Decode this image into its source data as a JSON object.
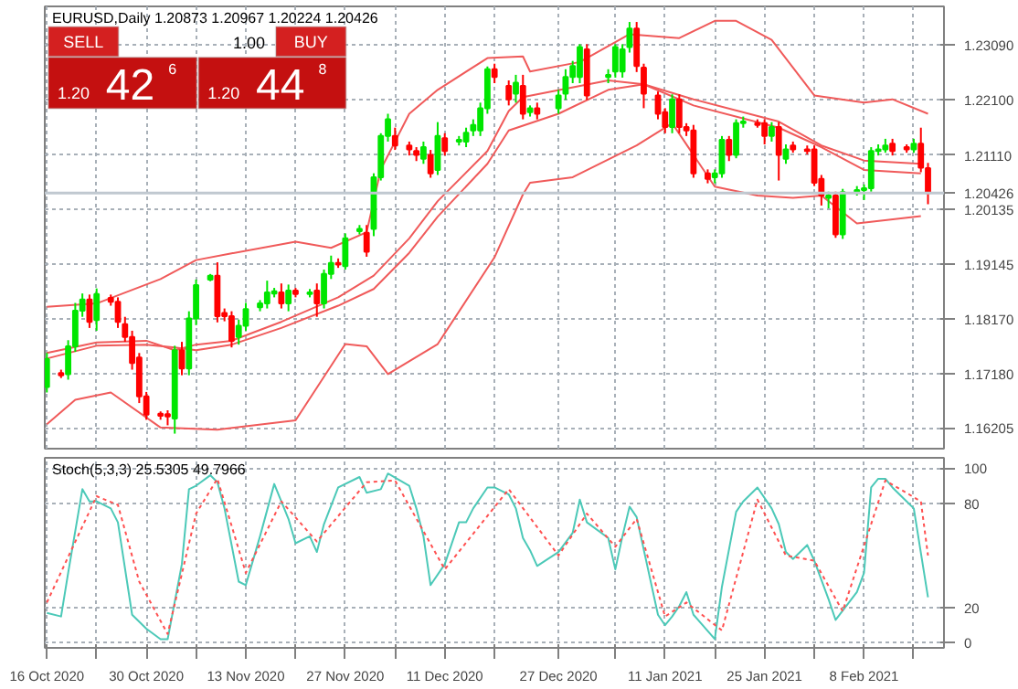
{
  "chart_data": [
    {
      "type": "candlestick",
      "title": "EURUSD,Daily 1.20873 1.20967 1.20224 1.20426",
      "annotations": [
        "SELL",
        "1.00",
        "BUY",
        "1.20",
        "42",
        "6",
        "1.20",
        "44",
        "8"
      ],
      "x": [
        "2020-10-16",
        "2020-10-18",
        "2020-10-19",
        "2020-10-20",
        "2020-10-21",
        "2020-10-22",
        "2020-10-23",
        "2020-10-25",
        "2020-10-26",
        "2020-10-27",
        "2020-10-28",
        "2020-10-29",
        "2020-10-30",
        "2020-11-01",
        "2020-11-02",
        "2020-11-03",
        "2020-11-04",
        "2020-11-05",
        "2020-11-06",
        "2020-11-08",
        "2020-11-09",
        "2020-11-10",
        "2020-11-11",
        "2020-11-12",
        "2020-11-13",
        "2020-11-15",
        "2020-11-16",
        "2020-11-17",
        "2020-11-18",
        "2020-11-19",
        "2020-11-20",
        "2020-11-22",
        "2020-11-23",
        "2020-11-24",
        "2020-11-25",
        "2020-11-26",
        "2020-11-27",
        "2020-11-29",
        "2020-11-30",
        "2020-12-01",
        "2020-12-02",
        "2020-12-03",
        "2020-12-04",
        "2020-12-06",
        "2020-12-07",
        "2020-12-08",
        "2020-12-09",
        "2020-12-10",
        "2020-12-11",
        "2020-12-13",
        "2020-12-14",
        "2020-12-15",
        "2020-12-16",
        "2020-12-17",
        "2020-12-18",
        "2020-12-20",
        "2020-12-21",
        "2020-12-22",
        "2020-12-23",
        "2020-12-24",
        "2020-12-27",
        "2020-12-28",
        "2020-12-29",
        "2020-12-30",
        "2020-12-31",
        "2021-01-03",
        "2021-01-04",
        "2021-01-05",
        "2021-01-06",
        "2021-01-07",
        "2021-01-08",
        "2021-01-10",
        "2021-01-11",
        "2021-01-12",
        "2021-01-13",
        "2021-01-14",
        "2021-01-15",
        "2021-01-17",
        "2021-01-18",
        "2021-01-19",
        "2021-01-20",
        "2021-01-21",
        "2021-01-22",
        "2021-01-24",
        "2021-01-25",
        "2021-01-26",
        "2021-01-27",
        "2021-01-28",
        "2021-01-29",
        "2021-01-31",
        "2021-02-01",
        "2021-02-02",
        "2021-02-03",
        "2021-02-04",
        "2021-02-05",
        "2021-02-07",
        "2021-02-08",
        "2021-02-09",
        "2021-02-10",
        "2021-02-11",
        "2021-02-12",
        "2021-02-14",
        "2021-02-15",
        "2021-02-16",
        "2021-02-17"
      ],
      "ohlc": [
        [
          1.1694,
          1.1755,
          1.1684,
          1.1744
        ],
        [
          1.1719,
          1.1725,
          1.171,
          1.1715
        ],
        [
          1.1717,
          1.1778,
          1.1707,
          1.1767
        ],
        [
          1.1767,
          1.1845,
          1.1757,
          1.1831
        ],
        [
          1.1831,
          1.1862,
          1.182,
          1.1851
        ],
        [
          1.1851,
          1.186,
          1.18,
          1.1811
        ],
        [
          1.1814,
          1.1871,
          1.1795,
          1.1861
        ],
        [
          1.1854,
          1.186,
          1.184,
          1.1847
        ],
        [
          1.1847,
          1.1855,
          1.18,
          1.1811
        ],
        [
          1.1807,
          1.182,
          1.1775,
          1.1784
        ],
        [
          1.1784,
          1.1795,
          1.1725,
          1.1737
        ],
        [
          1.1747,
          1.1755,
          1.1665,
          1.1677
        ],
        [
          1.1677,
          1.1685,
          1.1635,
          1.1644
        ],
        [
          1.1646,
          1.165,
          1.1635,
          1.1642
        ],
        [
          1.1645,
          1.1652,
          1.1625,
          1.1641
        ],
        [
          1.1637,
          1.1768,
          1.161,
          1.176
        ],
        [
          1.176,
          1.1775,
          1.1715,
          1.1727
        ],
        [
          1.1727,
          1.183,
          1.1715,
          1.1817
        ],
        [
          1.1817,
          1.1887,
          1.1805,
          1.1877
        ],
        [
          1.1887,
          1.1897,
          1.1884,
          1.1894
        ],
        [
          1.1894,
          1.1918,
          1.181,
          1.1821
        ],
        [
          1.1827,
          1.1835,
          1.1812,
          1.1821
        ],
        [
          1.1821,
          1.183,
          1.1765,
          1.1777
        ],
        [
          1.1784,
          1.1815,
          1.177,
          1.1804
        ],
        [
          1.1804,
          1.1845,
          1.1795,
          1.1834
        ],
        [
          1.1837,
          1.185,
          1.183,
          1.1844
        ],
        [
          1.1844,
          1.1885,
          1.1835,
          1.1864
        ],
        [
          1.1862,
          1.1872,
          1.1855,
          1.1866
        ],
        [
          1.1864,
          1.188,
          1.1835,
          1.1844
        ],
        [
          1.1844,
          1.1878,
          1.183,
          1.1867
        ],
        [
          1.1867,
          1.1872,
          1.1855,
          1.1861
        ],
        [
          1.1861,
          1.187,
          1.1855,
          1.1864
        ],
        [
          1.1867,
          1.188,
          1.182,
          1.1844
        ],
        [
          1.1844,
          1.1905,
          1.1835,
          1.1897
        ],
        [
          1.1897,
          1.193,
          1.1888,
          1.1917
        ],
        [
          1.1917,
          1.1925,
          1.1908,
          1.1914
        ],
        [
          1.1911,
          1.197,
          1.1905,
          1.1961
        ],
        [
          1.1974,
          1.1985,
          1.1968,
          1.1978
        ],
        [
          1.1971,
          1.1985,
          1.1928,
          1.1937
        ],
        [
          1.1978,
          1.2078,
          1.1965,
          1.2071
        ],
        [
          1.2071,
          1.215,
          1.2065,
          1.2145
        ],
        [
          1.2145,
          1.2185,
          1.2135,
          1.2175
        ],
        [
          1.2145,
          1.216,
          1.212,
          1.2128
        ],
        [
          1.2128,
          1.2135,
          1.211,
          1.2121
        ],
        [
          1.2118,
          1.2125,
          1.21,
          1.2111
        ],
        [
          1.2104,
          1.2135,
          1.2095,
          1.2125
        ],
        [
          1.2111,
          1.212,
          1.207,
          1.2078
        ],
        [
          1.2084,
          1.217,
          1.2075,
          1.2145
        ],
        [
          1.2141,
          1.215,
          1.211,
          1.2118
        ],
        [
          1.2135,
          1.2145,
          1.2128,
          1.2138
        ],
        [
          1.2135,
          1.216,
          1.2125,
          1.2151
        ],
        [
          1.2155,
          1.2175,
          1.2145,
          1.2165
        ],
        [
          1.2155,
          1.2205,
          1.2145,
          1.2195
        ],
        [
          1.2195,
          1.227,
          1.2185,
          1.2265
        ],
        [
          1.2265,
          1.2275,
          1.224,
          1.2251
        ],
        [
          1.2235,
          1.2245,
          1.22,
          1.2211
        ],
        [
          1.2221,
          1.2255,
          1.2205,
          1.2241
        ],
        [
          1.2235,
          1.2255,
          1.2175,
          1.2185
        ],
        [
          1.2188,
          1.22,
          1.218,
          1.2195
        ],
        [
          1.2195,
          1.2205,
          1.2175,
          1.2185
        ],
        [
          1.2195,
          1.2228,
          1.2185,
          1.2218
        ],
        [
          1.2221,
          1.2265,
          1.221,
          1.2251
        ],
        [
          1.2251,
          1.228,
          1.224,
          1.2271
        ],
        [
          1.2251,
          1.231,
          1.224,
          1.2305
        ],
        [
          1.2301,
          1.231,
          1.221,
          1.2218
        ],
        [
          1.2251,
          1.2265,
          1.224,
          1.2255
        ],
        [
          1.2261,
          1.231,
          1.225,
          1.2305
        ],
        [
          1.2261,
          1.231,
          1.225,
          1.2301
        ],
        [
          1.2305,
          1.235,
          1.2295,
          1.2338
        ],
        [
          1.2338,
          1.235,
          1.226,
          1.2271
        ],
        [
          1.2268,
          1.2275,
          1.2195,
          1.2221
        ],
        [
          1.2218,
          1.2225,
          1.2175,
          1.2185
        ],
        [
          1.2188,
          1.2195,
          1.215,
          1.2161
        ],
        [
          1.2161,
          1.222,
          1.215,
          1.2211
        ],
        [
          1.2211,
          1.222,
          1.215,
          1.2161
        ],
        [
          1.2161,
          1.2168,
          1.2145,
          1.2155
        ],
        [
          1.2155,
          1.2165,
          1.207,
          1.2078
        ],
        [
          1.2078,
          1.2085,
          1.206,
          1.2068
        ],
        [
          1.2071,
          1.2085,
          1.206,
          1.2078
        ],
        [
          1.2078,
          1.2145,
          1.207,
          1.2138
        ],
        [
          1.2138,
          1.2145,
          1.21,
          1.2111
        ],
        [
          1.2111,
          1.2175,
          1.2105,
          1.2168
        ],
        [
          1.2168,
          1.218,
          1.216,
          1.2171
        ],
        [
          1.2168,
          1.2175,
          1.216,
          1.2165
        ],
        [
          1.2168,
          1.2175,
          1.213,
          1.2145
        ],
        [
          1.2145,
          1.217,
          1.2135,
          1.2161
        ],
        [
          1.2161,
          1.217,
          1.2065,
          1.2111
        ],
        [
          1.2104,
          1.213,
          1.2095,
          1.2121
        ],
        [
          1.2128,
          1.2135,
          1.2115,
          1.2121
        ],
        [
          1.2121,
          1.2128,
          1.2112,
          1.2118
        ],
        [
          1.2121,
          1.2128,
          1.2055,
          1.2061
        ],
        [
          1.2068,
          1.2075,
          1.202,
          1.2038
        ],
        [
          1.2034,
          1.2045,
          1.2015,
          1.2038
        ],
        [
          1.2038,
          1.2045,
          1.1962,
          1.1968
        ],
        [
          1.1968,
          1.205,
          1.196,
          1.2044
        ],
        [
          1.2044,
          1.2055,
          1.2038,
          1.2048
        ],
        [
          1.2048,
          1.2058,
          1.203,
          1.2051
        ],
        [
          1.2051,
          1.2125,
          1.2045,
          1.2118
        ],
        [
          1.2118,
          1.213,
          1.211,
          1.2121
        ],
        [
          1.2121,
          1.214,
          1.2115,
          1.2128
        ],
        [
          1.2131,
          1.214,
          1.211,
          1.2118
        ],
        [
          1.2125,
          1.213,
          1.2115,
          1.2121
        ],
        [
          1.2121,
          1.214,
          1.2115,
          1.2131
        ],
        [
          1.2131,
          1.216,
          1.208,
          1.2088
        ],
        [
          1.20873,
          1.20967,
          1.20224,
          1.20426
        ]
      ],
      "colors": [
        "#00e600",
        "#ff0000",
        "#00e600",
        "#00e600",
        "#00e600",
        "#ff0000",
        "#00e600",
        "#ff0000",
        "#ff0000",
        "#ff0000",
        "#ff0000",
        "#ff0000",
        "#ff0000",
        "#ff0000",
        "#ff0000",
        "#00e600",
        "#ff0000",
        "#00e600",
        "#00e600",
        "#00e600",
        "#ff0000",
        "#ff0000",
        "#ff0000",
        "#00e600",
        "#00e600",
        "#00e600",
        "#00e600",
        "#00e600",
        "#ff0000",
        "#00e600",
        "#ff0000",
        "#00e600",
        "#ff0000",
        "#00e600",
        "#00e600",
        "#ff0000",
        "#00e600",
        "#00e600",
        "#ff0000",
        "#00e600",
        "#00e600",
        "#00e600",
        "#ff0000",
        "#ff0000",
        "#ff0000",
        "#00e600",
        "#ff0000",
        "#00e600",
        "#ff0000",
        "#00e600",
        "#00e600",
        "#00e600",
        "#00e600",
        "#00e600",
        "#ff0000",
        "#ff0000",
        "#00e600",
        "#ff0000",
        "#00e600",
        "#ff0000",
        "#00e600",
        "#00e600",
        "#00e600",
        "#00e600",
        "#ff0000",
        "#00e600",
        "#00e600",
        "#00e600",
        "#00e600",
        "#ff0000",
        "#ff0000",
        "#ff0000",
        "#ff0000",
        "#00e600",
        "#ff0000",
        "#ff0000",
        "#ff0000",
        "#ff0000",
        "#00e600",
        "#00e600",
        "#ff0000",
        "#00e600",
        "#00e600",
        "#ff0000",
        "#ff0000",
        "#00e600",
        "#ff0000",
        "#00e600",
        "#ff0000",
        "#ff0000",
        "#ff0000",
        "#ff0000",
        "#00e600",
        "#ff0000",
        "#00e600",
        "#00e600",
        "#00e600",
        "#00e600",
        "#00e600",
        "#00e600",
        "#ff0000",
        "#ff0000",
        "#00e600",
        "#ff0000",
        "#ff0000"
      ],
      "series": [
        {
          "type": "line",
          "color": "#f05a5a",
          "x": [
            "2020-10-16",
            "2020-10-23",
            "2020-11-01",
            "2020-11-06",
            "2020-11-11",
            "2020-11-20",
            "2020-11-25",
            "2020-11-30",
            "2020-12-02",
            "2020-12-06",
            "2020-12-10",
            "2020-12-17",
            "2020-12-22",
            "2020-12-23",
            "2020-12-30",
            "2021-01-06",
            "2021-01-13",
            "2021-01-18",
            "2021-01-21",
            "2021-01-26",
            "2021-02-01",
            "2021-02-08",
            "2021-02-12",
            "2021-02-17"
          ],
          "values": [
            1.1838,
            1.1844,
            1.1888,
            1.1922,
            1.1934,
            1.1955,
            1.1944,
            1.1972,
            1.2085,
            1.2185,
            1.2228,
            1.2285,
            1.2288,
            1.2261,
            1.2278,
            1.2328,
            1.2321,
            1.2352,
            1.2352,
            1.2318,
            1.2218,
            1.2205,
            1.2211,
            1.2185
          ]
        },
        {
          "type": "line",
          "color": "#f05a5a",
          "x": [
            "2020-10-16",
            "2020-10-23",
            "2020-10-30",
            "2020-11-03",
            "2020-11-06",
            "2020-11-11",
            "2020-11-18",
            "2020-11-26",
            "2020-12-01",
            "2020-12-06",
            "2020-12-10",
            "2020-12-17",
            "2020-12-20",
            "2020-12-22",
            "2021-01-03",
            "2021-01-08",
            "2021-01-15",
            "2021-01-27",
            "2021-02-02",
            "2021-02-08",
            "2021-02-16"
          ],
          "values": [
            1.1755,
            1.1774,
            1.1777,
            1.176,
            1.177,
            1.1777,
            1.1811,
            1.1855,
            1.1894,
            1.1961,
            1.2028,
            1.2118,
            1.219,
            1.2215,
            1.2245,
            1.2238,
            1.2211,
            1.2171,
            1.2128,
            1.2101,
            1.2095
          ]
        },
        {
          "type": "line",
          "color": "#f05a5a",
          "x": [
            "2020-10-16",
            "2020-10-23",
            "2020-10-30",
            "2020-11-03",
            "2020-11-06",
            "2020-11-11",
            "2020-11-18",
            "2020-11-26",
            "2020-12-01",
            "2020-12-06",
            "2020-12-10",
            "2020-12-17",
            "2020-12-20",
            "2020-12-27",
            "2021-01-03",
            "2021-01-08",
            "2021-01-15",
            "2021-01-27",
            "2021-02-02",
            "2021-02-08",
            "2021-02-16"
          ],
          "values": [
            1.1745,
            1.1768,
            1.177,
            1.1765,
            1.176,
            1.177,
            1.18,
            1.184,
            1.187,
            1.1935,
            1.2,
            1.2095,
            1.2155,
            1.2185,
            1.2228,
            1.2238,
            1.22,
            1.216,
            1.2125,
            1.2084,
            1.2078
          ]
        },
        {
          "type": "line",
          "color": "#f05a5a",
          "x": [
            "2020-10-16",
            "2020-10-20",
            "2020-10-25",
            "2020-11-01",
            "2020-11-09",
            "2020-11-20",
            "2020-11-27",
            "2020-11-30",
            "2020-12-03",
            "2020-12-10",
            "2020-12-18",
            "2020-12-22",
            "2020-12-23",
            "2020-12-29",
            "2021-01-07",
            "2021-01-12",
            "2021-01-18",
            "2021-01-24",
            "2021-01-29",
            "2021-02-02",
            "2021-02-07",
            "2021-02-16"
          ],
          "values": [
            1.1627,
            1.1671,
            1.1684,
            1.1621,
            1.1617,
            1.1634,
            1.1771,
            1.1767,
            1.1717,
            1.1771,
            1.1927,
            1.204,
            1.2061,
            1.2071,
            1.2128,
            1.2168,
            1.2054,
            1.2038,
            1.2034,
            1.2038,
            1.1988,
            1.2001
          ]
        }
      ],
      "xlim": [
        "2020-10-15T17:00",
        "2021-02-19T06:00"
      ],
      "ylim": [
        1.1583,
        1.2378
      ],
      "xticks": [
        {
          "value": "2020-10-16",
          "label": null
        },
        {
          "value": "2020-10-23",
          "label": null
        },
        {
          "value": "2020-10-30",
          "label": null
        },
        {
          "value": "2020-11-06",
          "label": null
        },
        {
          "value": "2020-11-13",
          "label": null
        },
        {
          "value": "2020-11-20",
          "label": null
        },
        {
          "value": "2020-11-27",
          "label": null
        },
        {
          "value": "2020-12-04",
          "label": null
        },
        {
          "value": "2020-12-11",
          "label": null
        },
        {
          "value": "2020-12-18",
          "label": null
        },
        {
          "value": "2020-12-27",
          "label": null
        },
        {
          "value": "2021-01-04",
          "label": null
        },
        {
          "value": "2021-01-11",
          "label": null
        },
        {
          "value": "2021-01-18",
          "label": null
        },
        {
          "value": "2021-01-25",
          "label": null
        },
        {
          "value": "2021-02-01",
          "label": null
        },
        {
          "value": "2021-02-08",
          "label": null
        },
        {
          "value": "2021-02-15",
          "label": null
        }
      ],
      "yticks": [
        {
          "value": 1.2309,
          "label": "1.23090"
        },
        {
          "value": 1.221,
          "label": "1.22100"
        },
        {
          "value": 1.2111,
          "label": "1.21110"
        },
        {
          "value": 1.20135,
          "label": "1.20135"
        },
        {
          "value": 1.19145,
          "label": "1.19145"
        },
        {
          "value": 1.1817,
          "label": "1.18170"
        },
        {
          "value": 1.1718,
          "label": "1.17180"
        },
        {
          "value": 1.16205,
          "label": "1.16205"
        }
      ],
      "ref_lines": [
        {
          "axis": "y",
          "value": 1.20426,
          "label": "1.20426",
          "color": "#c0c8d0"
        }
      ],
      "tick_labels": "y",
      "grid": true
    },
    {
      "type": "line",
      "title": "Stoch(5,3,3) 25.5305 49.7966",
      "series": [
        {
          "color": "#4cc9b8",
          "line_style": "solid",
          "x": [
            "2020-10-16",
            "2020-10-18",
            "2020-10-19",
            "2020-10-21",
            "2020-10-22",
            "2020-10-23",
            "2020-10-25",
            "2020-10-26",
            "2020-10-28",
            "2020-10-30",
            "2020-11-01",
            "2020-11-02",
            "2020-11-04",
            "2020-11-05",
            "2020-11-06",
            "2020-11-08",
            "2020-11-09",
            "2020-11-10",
            "2020-11-12",
            "2020-11-13",
            "2020-11-15",
            "2020-11-17",
            "2020-11-19",
            "2020-11-20",
            "2020-11-22",
            "2020-11-23",
            "2020-11-24",
            "2020-11-26",
            "2020-11-29",
            "2020-11-30",
            "2020-12-02",
            "2020-12-03",
            "2020-12-06",
            "2020-12-07",
            "2020-12-08",
            "2020-12-09",
            "2020-12-11",
            "2020-12-13",
            "2020-12-14",
            "2020-12-15",
            "2020-12-17",
            "2020-12-18",
            "2020-12-20",
            "2020-12-21",
            "2020-12-22",
            "2020-12-23",
            "2020-12-24",
            "2020-12-27",
            "2020-12-29",
            "2020-12-30",
            "2020-12-31",
            "2021-01-03",
            "2021-01-04",
            "2021-01-05",
            "2021-01-06",
            "2021-01-07",
            "2021-01-10",
            "2021-01-11",
            "2021-01-12",
            "2021-01-13",
            "2021-01-14",
            "2021-01-15",
            "2021-01-18",
            "2021-01-19",
            "2021-01-21",
            "2021-01-22",
            "2021-01-24",
            "2021-01-26",
            "2021-01-27",
            "2021-01-28",
            "2021-01-29",
            "2021-01-31",
            "2021-02-01",
            "2021-02-03",
            "2021-02-04",
            "2021-02-07",
            "2021-02-08",
            "2021-02-09",
            "2021-02-10",
            "2021-02-11",
            "2021-02-12",
            "2021-02-14",
            "2021-02-15",
            "2021-02-17"
          ],
          "values": [
            17,
            15,
            40,
            88,
            81,
            81,
            77,
            69,
            16,
            8,
            2,
            2,
            45,
            88,
            90,
            96,
            92,
            77,
            35,
            33,
            61,
            91,
            71,
            57,
            61,
            52,
            68,
            89,
            95,
            86,
            88,
            97,
            90,
            77,
            61,
            33,
            45,
            69,
            69,
            77,
            89,
            89,
            85,
            77,
            60,
            53,
            44,
            52,
            63,
            82,
            69,
            60,
            42,
            61,
            78,
            72,
            16,
            10,
            15,
            21,
            29,
            16,
            2,
            32,
            75,
            81,
            89,
            77,
            68,
            52,
            48,
            56,
            47,
            25,
            13,
            29,
            40,
            89,
            94,
            94,
            89,
            81,
            77,
            26
          ]
        },
        {
          "color": "#ff5050",
          "line_style": "dotted",
          "x": [
            "2020-10-16",
            "2020-10-23",
            "2020-10-26",
            "2020-10-29",
            "2020-11-02",
            "2020-11-06",
            "2020-11-09",
            "2020-11-13",
            "2020-11-18",
            "2020-11-23",
            "2020-11-30",
            "2020-12-04",
            "2020-12-11",
            "2020-12-20",
            "2020-12-27",
            "2020-12-31",
            "2021-01-04",
            "2021-01-07",
            "2021-01-11",
            "2021-01-14",
            "2021-01-19",
            "2021-01-24",
            "2021-01-28",
            "2021-02-01",
            "2021-02-05",
            "2021-02-11",
            "2021-02-16",
            "2021-02-17"
          ],
          "values": [
            23,
            84,
            79,
            35,
            5,
            74,
            94,
            40,
            81,
            58,
            92,
            93,
            42,
            88,
            50,
            74,
            55,
            71,
            15,
            23,
            7,
            82,
            50,
            47,
            18,
            93,
            81,
            50
          ]
        }
      ],
      "xlim": [
        "2020-10-15T17:00",
        "2021-02-19T06:00"
      ],
      "ylim": [
        -3,
        106
      ],
      "xticks": [
        {
          "value": "2020-10-16",
          "label": "16 Oct 2020"
        },
        {
          "value": "2020-10-23",
          "label": null
        },
        {
          "value": "2020-10-30",
          "label": "30 Oct 2020"
        },
        {
          "value": "2020-11-06",
          "label": null
        },
        {
          "value": "2020-11-13",
          "label": "13 Nov 2020"
        },
        {
          "value": "2020-11-20",
          "label": null
        },
        {
          "value": "2020-11-27",
          "label": "27 Nov 2020"
        },
        {
          "value": "2020-12-04",
          "label": null
        },
        {
          "value": "2020-12-11",
          "label": "11 Dec 2020"
        },
        {
          "value": "2020-12-18",
          "label": null
        },
        {
          "value": "2020-12-27",
          "label": "27 Dec 2020"
        },
        {
          "value": "2021-01-04",
          "label": null
        },
        {
          "value": "2021-01-11",
          "label": "11 Jan 2021"
        },
        {
          "value": "2021-01-18",
          "label": null
        },
        {
          "value": "2021-01-25",
          "label": "25 Jan 2021"
        },
        {
          "value": "2021-02-01",
          "label": null
        },
        {
          "value": "2021-02-08",
          "label": "8 Feb 2021"
        },
        {
          "value": "2021-02-15",
          "label": null
        }
      ],
      "yticks": [
        0,
        20,
        80,
        100
      ],
      "grid": true
    }
  ]
}
